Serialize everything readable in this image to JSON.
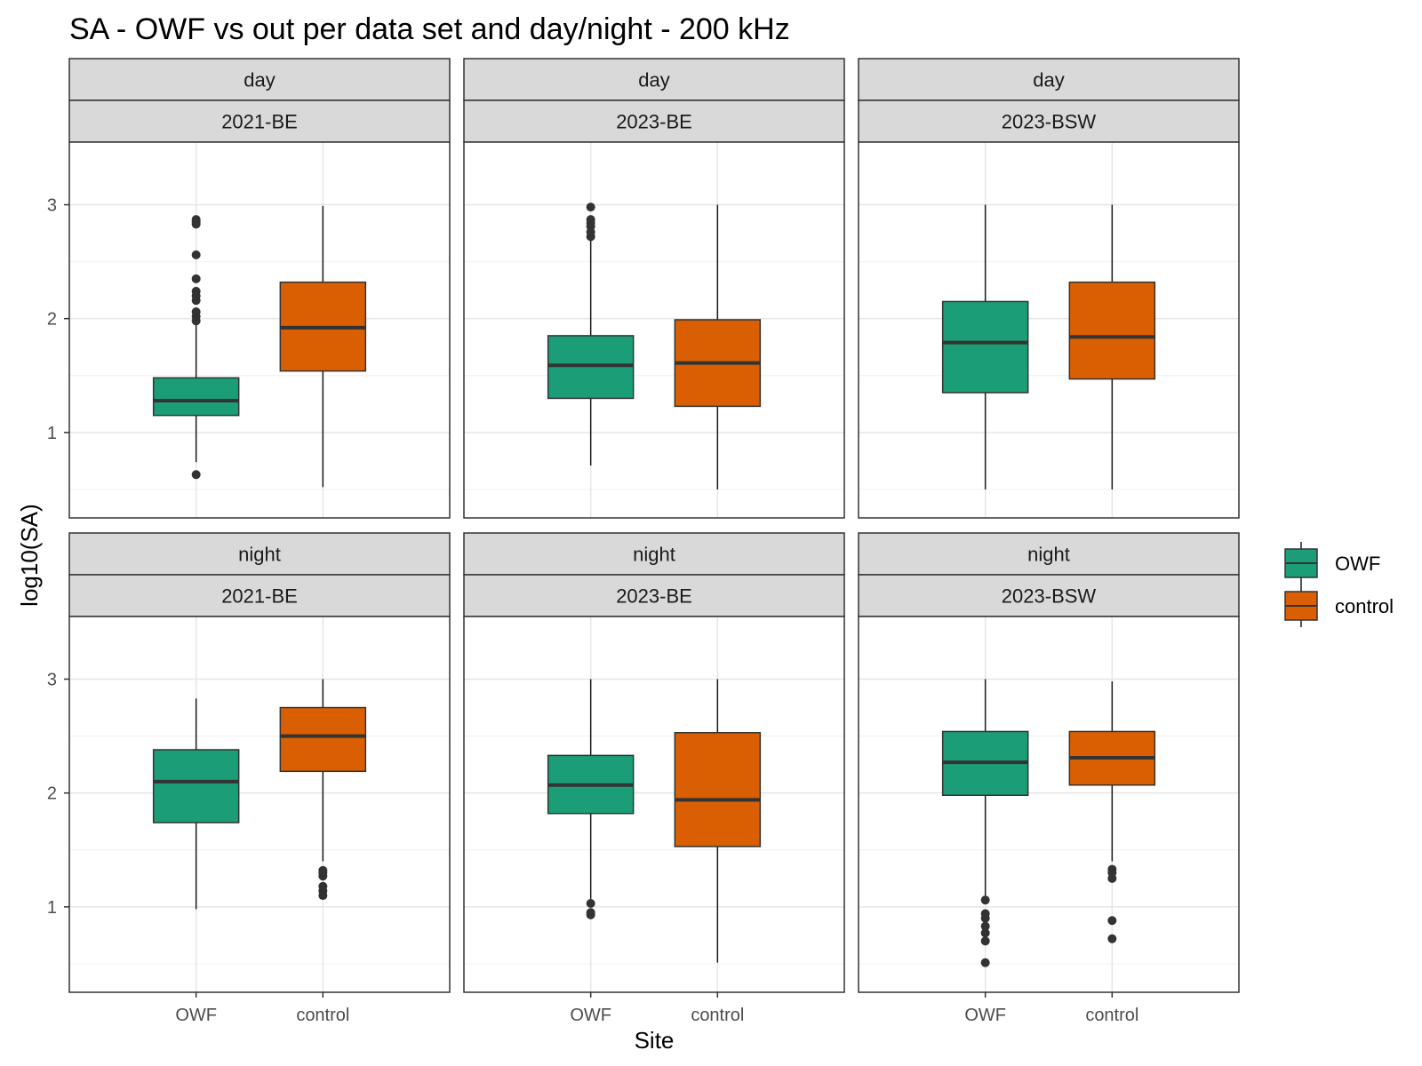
{
  "chart_data": {
    "type": "boxplot",
    "title": "SA - OWF vs out per data set and day/night - 200 kHz",
    "xlabel": "Site",
    "ylabel": "log10(SA)",
    "ylim": [
      0.25,
      3.55
    ],
    "y_ticks": [
      1,
      2,
      3
    ],
    "categories": [
      "OWF",
      "control"
    ],
    "legend": {
      "position": "right",
      "entries": [
        {
          "name": "OWF",
          "color": "#1B9E77"
        },
        {
          "name": "control",
          "color": "#D95F02"
        }
      ]
    },
    "grid": true,
    "facets": [
      {
        "row": "day",
        "col": "2021-BE",
        "boxes": [
          {
            "site": "OWF",
            "whisker_low": 0.74,
            "q1": 1.15,
            "median": 1.28,
            "q3": 1.48,
            "whisker_high": 1.95,
            "outliers": [
              0.63,
              1.98,
              2.02,
              2.06,
              2.16,
              2.2,
              2.24,
              2.35,
              2.56,
              2.83,
              2.85,
              2.87
            ]
          },
          {
            "site": "control",
            "whisker_low": 0.52,
            "q1": 1.54,
            "median": 1.92,
            "q3": 2.32,
            "whisker_high": 2.99,
            "outliers": []
          }
        ]
      },
      {
        "row": "day",
        "col": "2023-BE",
        "boxes": [
          {
            "site": "OWF",
            "whisker_low": 0.71,
            "q1": 1.3,
            "median": 1.59,
            "q3": 1.85,
            "whisker_high": 2.69,
            "outliers": [
              2.72,
              2.76,
              2.81,
              2.84,
              2.87,
              2.98
            ]
          },
          {
            "site": "control",
            "whisker_low": 0.5,
            "q1": 1.23,
            "median": 1.61,
            "q3": 1.99,
            "whisker_high": 3.0,
            "outliers": []
          }
        ]
      },
      {
        "row": "day",
        "col": "2023-BSW",
        "boxes": [
          {
            "site": "OWF",
            "whisker_low": 0.5,
            "q1": 1.35,
            "median": 1.79,
            "q3": 2.15,
            "whisker_high": 3.0,
            "outliers": []
          },
          {
            "site": "control",
            "whisker_low": 0.5,
            "q1": 1.47,
            "median": 1.84,
            "q3": 2.32,
            "whisker_high": 3.0,
            "outliers": []
          }
        ]
      },
      {
        "row": "night",
        "col": "2021-BE",
        "boxes": [
          {
            "site": "OWF",
            "whisker_low": 0.98,
            "q1": 1.74,
            "median": 2.1,
            "q3": 2.38,
            "whisker_high": 2.83,
            "outliers": []
          },
          {
            "site": "control",
            "whisker_low": 1.4,
            "q1": 2.19,
            "median": 2.5,
            "q3": 2.75,
            "whisker_high": 3.0,
            "outliers": [
              1.1,
              1.14,
              1.18,
              1.27,
              1.3,
              1.32
            ]
          }
        ]
      },
      {
        "row": "night",
        "col": "2023-BE",
        "boxes": [
          {
            "site": "OWF",
            "whisker_low": 1.07,
            "q1": 1.82,
            "median": 2.07,
            "q3": 2.33,
            "whisker_high": 3.0,
            "outliers": [
              0.93,
              0.95,
              1.03
            ]
          },
          {
            "site": "control",
            "whisker_low": 0.51,
            "q1": 1.53,
            "median": 1.94,
            "q3": 2.53,
            "whisker_high": 3.0,
            "outliers": []
          }
        ]
      },
      {
        "row": "night",
        "col": "2023-BSW",
        "boxes": [
          {
            "site": "OWF",
            "whisker_low": 1.1,
            "q1": 1.98,
            "median": 2.27,
            "q3": 2.54,
            "whisker_high": 3.0,
            "outliers": [
              0.51,
              0.7,
              0.77,
              0.83,
              0.9,
              0.94,
              1.06
            ]
          },
          {
            "site": "control",
            "whisker_low": 1.4,
            "q1": 2.07,
            "median": 2.31,
            "q3": 2.54,
            "whisker_high": 2.98,
            "outliers": [
              0.72,
              0.88,
              1.25,
              1.3,
              1.33
            ]
          }
        ]
      }
    ]
  }
}
